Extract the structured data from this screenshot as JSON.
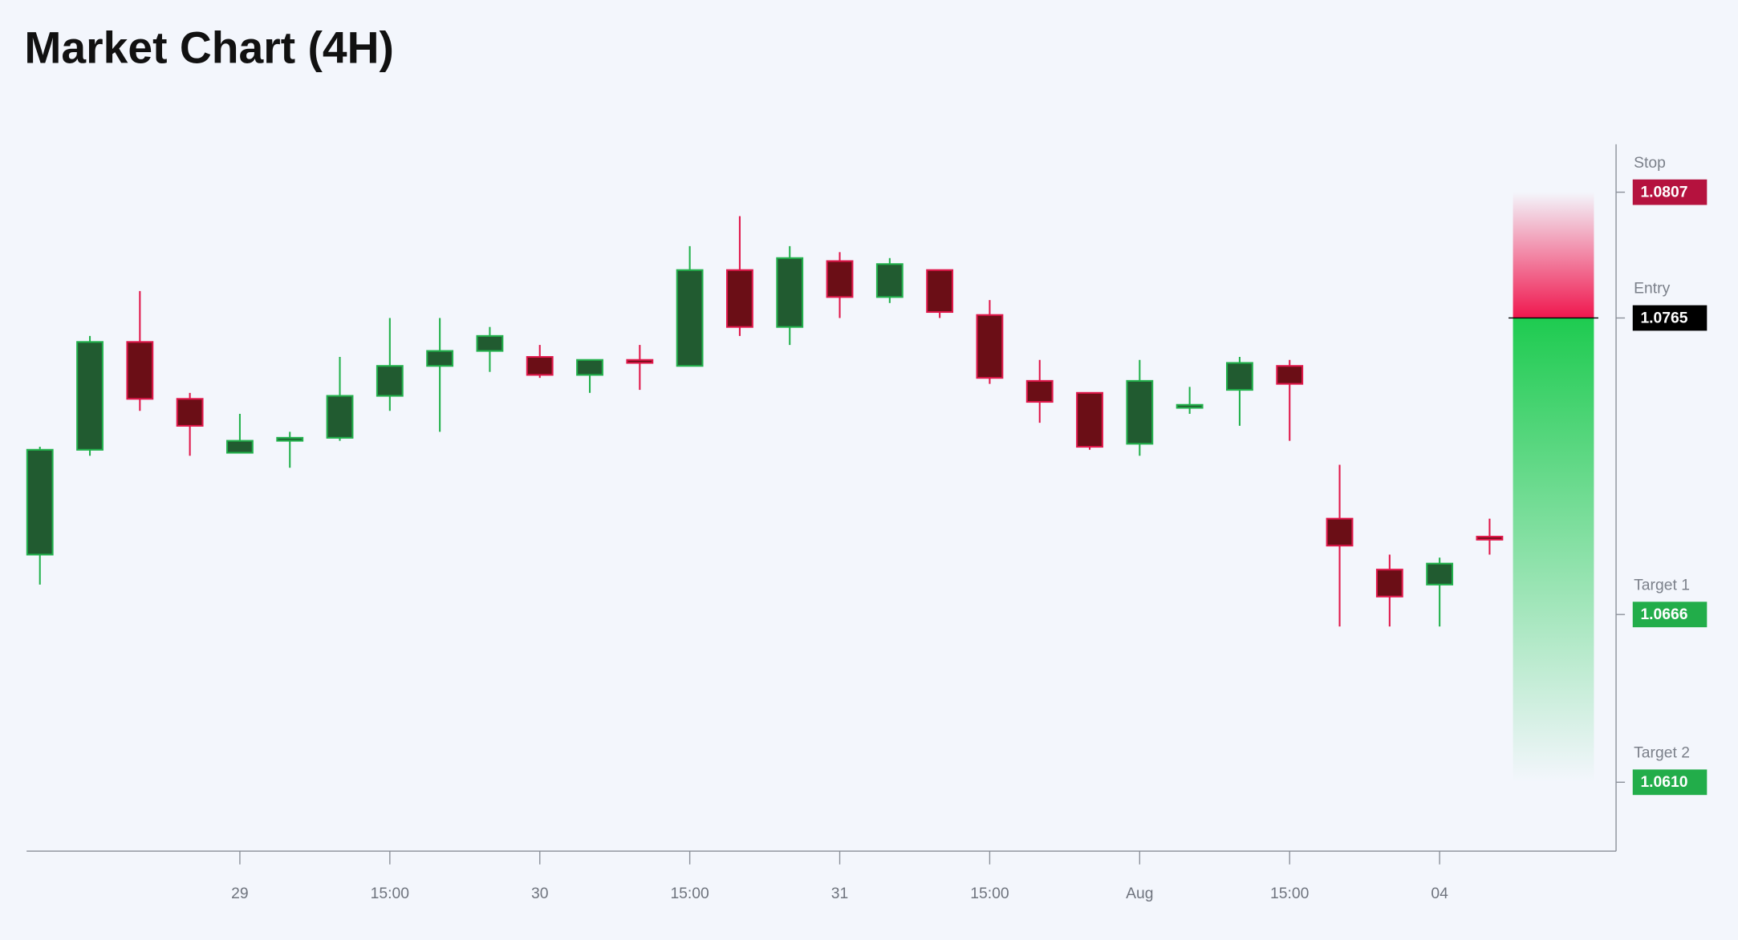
{
  "chart_data": {
    "type": "candlestick",
    "title": "Market Chart (4H)",
    "categories": [
      null,
      null,
      null,
      null,
      "29",
      null,
      null,
      "15:00",
      null,
      null,
      "30",
      null,
      null,
      "15:00",
      null,
      null,
      "31",
      null,
      null,
      "15:00",
      null,
      null,
      "Aug",
      null,
      null,
      "15:00",
      null,
      null,
      "04",
      null
    ],
    "open": [
      1.0686,
      1.0721,
      1.0757,
      1.0738,
      1.072,
      1.0724,
      1.0725,
      1.0739,
      1.0749,
      1.0754,
      1.0752,
      1.0746,
      1.0751,
      1.0749,
      1.0781,
      1.0762,
      1.0784,
      1.0772,
      1.0781,
      1.0766,
      1.0744,
      1.074,
      1.0723,
      1.0735,
      1.0741,
      1.0749,
      1.0698,
      1.0681,
      1.0676,
      1.0692
    ],
    "high": [
      1.0722,
      1.0759,
      1.0774,
      1.074,
      1.0733,
      1.0727,
      1.0752,
      1.0765,
      1.0765,
      1.0762,
      1.0756,
      1.0751,
      1.0756,
      1.0789,
      1.0799,
      1.0789,
      1.0787,
      1.0785,
      1.0781,
      1.0771,
      1.0751,
      1.074,
      1.0751,
      1.0742,
      1.0752,
      1.0751,
      1.0716,
      1.0686,
      1.0685,
      1.0698
    ],
    "low": [
      1.0676,
      1.0719,
      1.0734,
      1.0719,
      1.072,
      1.0715,
      1.0724,
      1.0734,
      1.0727,
      1.0747,
      1.0745,
      1.074,
      1.0741,
      1.0749,
      1.0759,
      1.0756,
      1.0765,
      1.077,
      1.0765,
      1.0743,
      1.073,
      1.0721,
      1.0719,
      1.0733,
      1.0729,
      1.0724,
      1.0662,
      1.0662,
      1.0662,
      1.0686
    ],
    "close": [
      1.0721,
      1.0757,
      1.0738,
      1.0729,
      1.0724,
      1.0725,
      1.0739,
      1.0749,
      1.0754,
      1.0759,
      1.0746,
      1.0751,
      1.075,
      1.0781,
      1.0762,
      1.0785,
      1.0772,
      1.0783,
      1.0767,
      1.0745,
      1.0737,
      1.0722,
      1.0744,
      1.0736,
      1.075,
      1.0743,
      1.0689,
      1.0672,
      1.0683,
      1.0691
    ],
    "up_color": "#22b14c",
    "up_fill": "#215b30",
    "down_color": "#e0174a",
    "down_fill": "#6b0e16",
    "ylim": [
      1.0587,
      1.0823
    ],
    "levels": [
      {
        "name": "Stop",
        "value": 1.0807,
        "label": "1.0807",
        "color": "#b5123e"
      },
      {
        "name": "Entry",
        "value": 1.0765,
        "label": "1.0765",
        "color": "#000000"
      },
      {
        "name": "Target 1",
        "value": 1.0666,
        "label": "1.0666",
        "color": "#22ad4a"
      },
      {
        "name": "Target 2",
        "value": 1.061,
        "label": "1.0610",
        "color": "#22ad4a"
      }
    ]
  }
}
